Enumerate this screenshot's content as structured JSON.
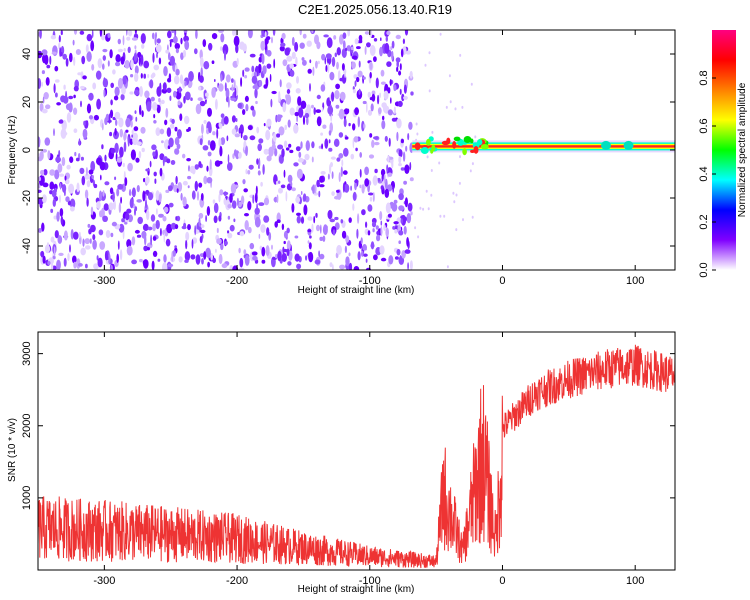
{
  "title": "C2E1.2025.056.13.40.R19",
  "chart_data": [
    {
      "type": "heatmap",
      "xlabel": "Height of straight line (km)",
      "ylabel": "Frequency (Hz)",
      "xlim": [
        -350,
        130
      ],
      "ylim": [
        -50,
        50
      ],
      "x_ticks": [
        -300,
        -200,
        -100,
        0,
        100
      ],
      "x_tick_labels": [
        "-300",
        "-200",
        "-100",
        "0",
        "100"
      ],
      "y_ticks": [
        -40,
        -20,
        0,
        20,
        40
      ],
      "y_tick_labels": [
        "-40",
        "-20",
        "0",
        "20",
        "40"
      ],
      "noise_region_x": [
        -350,
        -68
      ],
      "signal_line": {
        "x_start": -68,
        "x_end": 130,
        "frequency_hz": 1.5
      },
      "colorbar": {
        "label": "Normalized spectral amplitude",
        "range": [
          0.0,
          1.0
        ],
        "ticks": [
          0.0,
          0.2,
          0.4,
          0.6,
          0.8
        ],
        "tick_labels": [
          "0.0",
          "0.2",
          "0.4",
          "0.6",
          "0.8"
        ],
        "colors": [
          "#ffffff",
          "#8000ff",
          "#0000ff",
          "#00ffff",
          "#00ff00",
          "#ffff00",
          "#ff8000",
          "#ff0000",
          "#ff0080"
        ]
      }
    },
    {
      "type": "line",
      "color": "#ee3333",
      "xlabel": "Height of straight line (km)",
      "ylabel": "SNR (10 * v/v)",
      "xlim": [
        -350,
        130
      ],
      "ylim": [
        0,
        3300
      ],
      "x_ticks": [
        -300,
        -200,
        -100,
        0,
        100
      ],
      "x_tick_labels": [
        "-300",
        "-200",
        "-100",
        "0",
        "100"
      ],
      "y_ticks": [
        1000,
        2000,
        3000
      ],
      "y_tick_labels": [
        "1000",
        "2000",
        "3000"
      ],
      "envelope_x": [
        -350,
        -300,
        -250,
        -200,
        -150,
        -100,
        -60,
        -50,
        -45,
        -30,
        -15,
        -5,
        0,
        10,
        25,
        50,
        80,
        100,
        130
      ],
      "envelope_y": [
        800,
        750,
        680,
        600,
        420,
        260,
        180,
        160,
        1300,
        300,
        1900,
        500,
        2000,
        2200,
        2500,
        2700,
        2850,
        2900,
        2750
      ]
    }
  ]
}
